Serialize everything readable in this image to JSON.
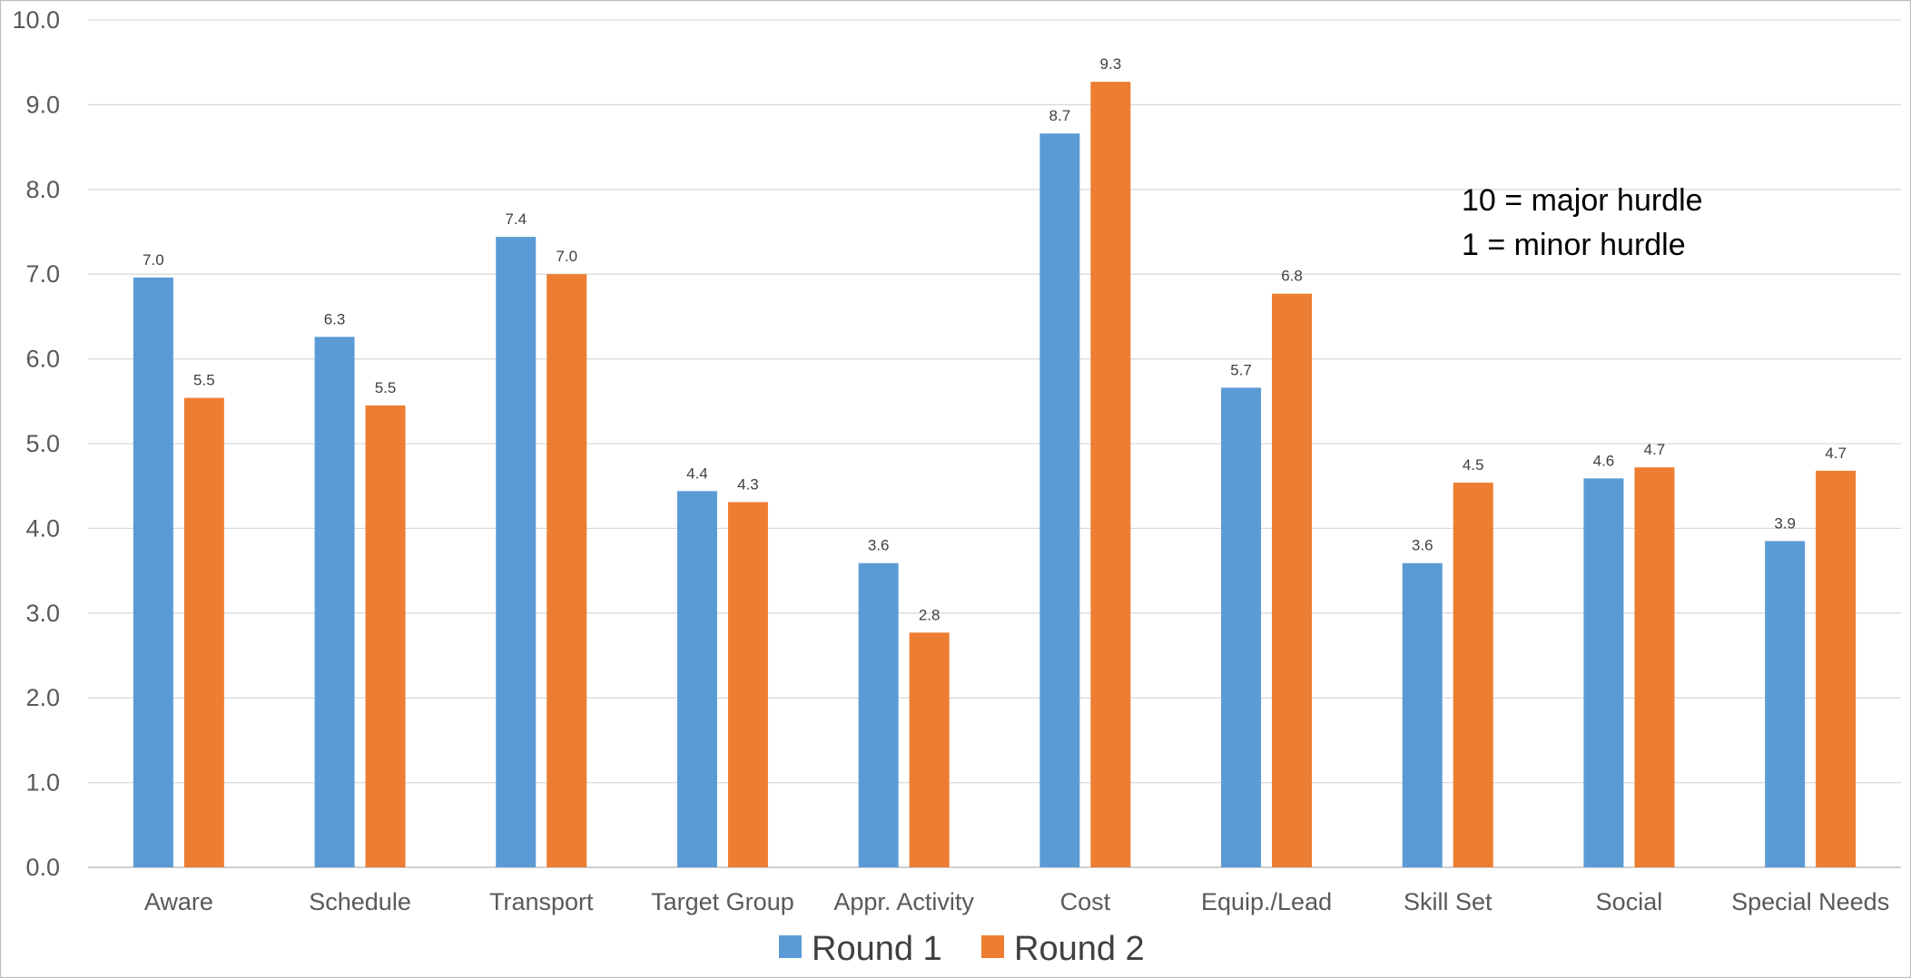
{
  "chart_data": {
    "type": "bar",
    "title": "",
    "xlabel": "",
    "ylabel": "",
    "ylim": [
      0,
      10
    ],
    "yticks": [
      "0.0",
      "1.0",
      "2.0",
      "3.0",
      "4.0",
      "5.0",
      "6.0",
      "7.0",
      "8.0",
      "9.0",
      "10.0"
    ],
    "grid": true,
    "legend_position": "bottom",
    "categories": [
      "Aware",
      "Schedule",
      "Transport",
      "Target Group",
      "Appr. Activity",
      "Cost",
      "Equip./Lead",
      "Skill Set",
      "Social",
      "Special Needs"
    ],
    "series": [
      {
        "name": "Round 1",
        "color": "#5b9bd5",
        "values": [
          6.96,
          6.26,
          7.44,
          4.44,
          3.59,
          8.66,
          5.66,
          3.59,
          4.59,
          3.85
        ],
        "labels": [
          "7.0",
          "6.3",
          "7.4",
          "4.4",
          "3.6",
          "8.7",
          "5.7",
          "3.6",
          "4.6",
          "3.9"
        ]
      },
      {
        "name": "Round 2",
        "color": "#ed7d31",
        "values": [
          5.54,
          5.45,
          7.0,
          4.31,
          2.77,
          9.27,
          6.77,
          4.54,
          4.72,
          4.68
        ],
        "labels": [
          "5.5",
          "5.5",
          "7.0",
          "4.3",
          "2.8",
          "9.3",
          "6.8",
          "4.5",
          "4.7",
          "4.7"
        ]
      }
    ],
    "annotation": [
      "10 = major hurdle",
      "1 = minor hurdle"
    ]
  }
}
